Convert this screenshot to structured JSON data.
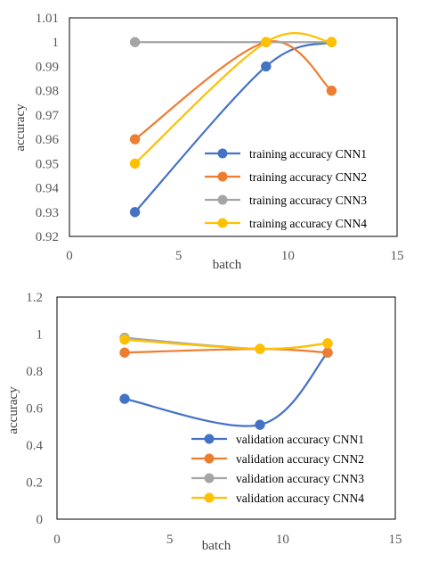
{
  "chart_data": [
    {
      "type": "scatter",
      "title": "",
      "xlabel": "batch",
      "ylabel": "accuracy",
      "xlim": [
        0,
        15
      ],
      "ylim": [
        0.92,
        1.01
      ],
      "x_ticks": [
        "0",
        "5",
        "10",
        "15"
      ],
      "y_ticks": [
        "0.92",
        "0.93",
        "0.94",
        "0.95",
        "0.96",
        "0.97",
        "0.98",
        "0.99",
        "1",
        "1.01"
      ],
      "grid": false,
      "legend_position": "lower-right",
      "series": [
        {
          "name": "training accuracy CNN1",
          "color": "#4472C4",
          "x": [
            3,
            9,
            12
          ],
          "y": [
            0.93,
            0.99,
            1.0
          ]
        },
        {
          "name": "training accuracy CNN2",
          "color": "#ED7D31",
          "x": [
            3,
            9,
            12
          ],
          "y": [
            0.96,
            1.0,
            0.98
          ]
        },
        {
          "name": "training accuracy CNN3",
          "color": "#A5A5A5",
          "x": [
            3,
            9,
            12
          ],
          "y": [
            1.0,
            1.0,
            1.0
          ]
        },
        {
          "name": "training accuracy CNN4",
          "color": "#FFC000",
          "x": [
            3,
            9,
            12
          ],
          "y": [
            0.95,
            1.0,
            1.0
          ]
        }
      ]
    },
    {
      "type": "scatter",
      "title": "",
      "xlabel": "batch",
      "ylabel": "accuracy",
      "xlim": [
        0,
        15
      ],
      "ylim": [
        0,
        1.2
      ],
      "x_ticks": [
        "0",
        "5",
        "10",
        "15"
      ],
      "y_ticks": [
        "0",
        "0.2",
        "0.4",
        "0.6",
        "0.8",
        "1",
        "1.2"
      ],
      "grid": false,
      "legend_position": "lower-right",
      "series": [
        {
          "name": "validation accuracy CNN1",
          "color": "#4472C4",
          "x": [
            3,
            9,
            12
          ],
          "y": [
            0.65,
            0.51,
            0.9
          ]
        },
        {
          "name": "validation accuracy CNN2",
          "color": "#ED7D31",
          "x": [
            3,
            9,
            12
          ],
          "y": [
            0.9,
            0.92,
            0.9
          ]
        },
        {
          "name": "validation accuracy CNN3",
          "color": "#A5A5A5",
          "x": [
            3,
            9,
            12
          ],
          "y": [
            0.98,
            0.92,
            0.95
          ]
        },
        {
          "name": "validation accuracy CNN4",
          "color": "#FFC000",
          "x": [
            3,
            9,
            12
          ],
          "y": [
            0.97,
            0.92,
            0.95
          ]
        }
      ]
    }
  ]
}
